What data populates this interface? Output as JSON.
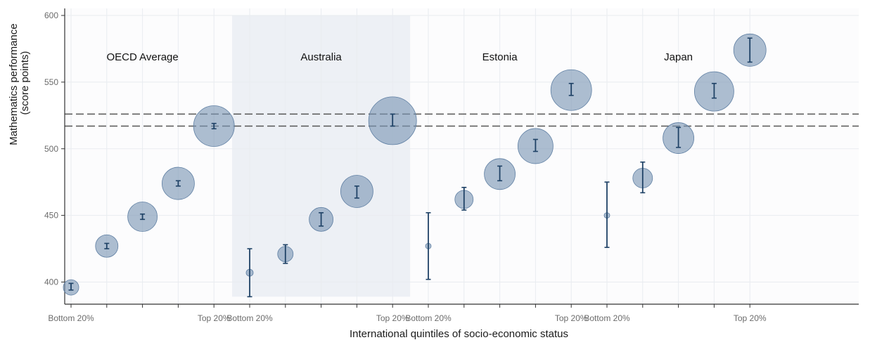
{
  "chart_data": {
    "type": "scatter",
    "xlabel": "International quintiles of socio-economic status",
    "ylabel": [
      "Mathematics performance",
      "(score points)"
    ],
    "ylim": [
      385,
      602
    ],
    "yticks": [
      400,
      450,
      500,
      550,
      600
    ],
    "reference_lines": [
      526,
      517
    ],
    "grid": true,
    "x_tick_labels": {
      "first": "Bottom 20%",
      "last": "Top 20%"
    },
    "colors": {
      "bubble": "#7a96b5",
      "bubble_stroke": "#5f7fa3",
      "errorbar": "#1f4266",
      "highlight_panel": "#e8ecf1",
      "refline": "#555555"
    },
    "panels": [
      {
        "name": "OECD Average",
        "highlight": false,
        "points": [
          {
            "quintile": 1,
            "value": 396,
            "ci": [
              394,
              399
            ],
            "size": 11
          },
          {
            "quintile": 2,
            "value": 427,
            "ci": [
              425,
              429
            ],
            "size": 16
          },
          {
            "quintile": 3,
            "value": 449,
            "ci": [
              447,
              451
            ],
            "size": 21
          },
          {
            "quintile": 4,
            "value": 474,
            "ci": [
              472,
              476
            ],
            "size": 23
          },
          {
            "quintile": 5,
            "value": 517,
            "ci": [
              515,
              519
            ],
            "size": 29
          }
        ]
      },
      {
        "name": "Australia",
        "highlight": true,
        "points": [
          {
            "quintile": 1,
            "value": 407,
            "ci": [
              389,
              425
            ],
            "size": 5
          },
          {
            "quintile": 2,
            "value": 421,
            "ci": [
              414,
              428
            ],
            "size": 11
          },
          {
            "quintile": 3,
            "value": 447,
            "ci": [
              442,
              452
            ],
            "size": 17
          },
          {
            "quintile": 4,
            "value": 468,
            "ci": [
              463,
              472
            ],
            "size": 23
          },
          {
            "quintile": 5,
            "value": 521,
            "ci": [
              517,
              526
            ],
            "size": 34
          }
        ]
      },
      {
        "name": "Estonia",
        "highlight": false,
        "points": [
          {
            "quintile": 1,
            "value": 427,
            "ci": [
              402,
              452
            ],
            "size": 4
          },
          {
            "quintile": 2,
            "value": 462,
            "ci": [
              454,
              471
            ],
            "size": 13
          },
          {
            "quintile": 3,
            "value": 481,
            "ci": [
              476,
              487
            ],
            "size": 22
          },
          {
            "quintile": 4,
            "value": 502,
            "ci": [
              498,
              507
            ],
            "size": 25
          },
          {
            "quintile": 5,
            "value": 544,
            "ci": [
              540,
              549
            ],
            "size": 29
          }
        ]
      },
      {
        "name": "Japan",
        "highlight": false,
        "points": [
          {
            "quintile": 1,
            "value": 450,
            "ci": [
              426,
              475
            ],
            "size": 4
          },
          {
            "quintile": 2,
            "value": 478,
            "ci": [
              467,
              490
            ],
            "size": 14
          },
          {
            "quintile": 3,
            "value": 508,
            "ci": [
              501,
              516
            ],
            "size": 22
          },
          {
            "quintile": 4,
            "value": 543,
            "ci": [
              538,
              549
            ],
            "size": 28
          },
          {
            "quintile": 5,
            "value": 574,
            "ci": [
              565,
              583
            ],
            "size": 23
          }
        ]
      }
    ]
  }
}
